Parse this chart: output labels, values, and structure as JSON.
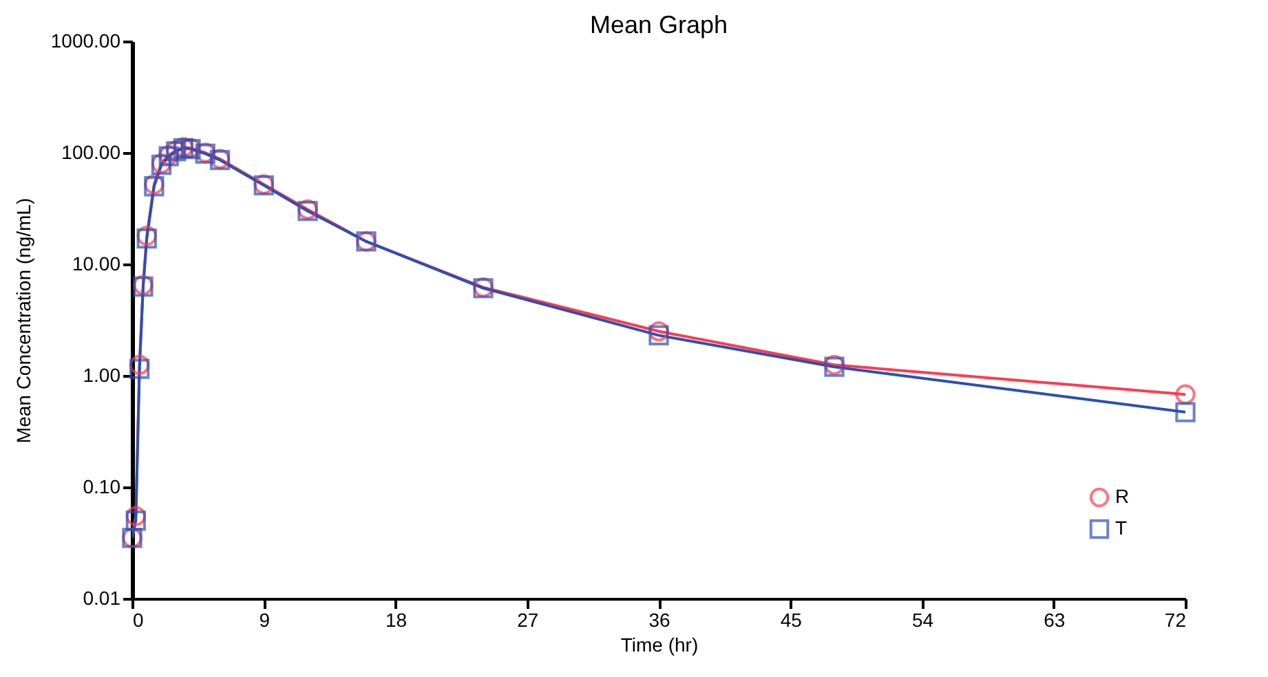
{
  "chart_data": {
    "type": "line",
    "title": "Mean Graph",
    "xlabel": "Time (hr)",
    "ylabel": "Mean Concentration (ng/mL)",
    "x": [
      0,
      0.25,
      0.5,
      0.75,
      1,
      1.5,
      2,
      2.5,
      3,
      3.5,
      4,
      5,
      6,
      9,
      12,
      16,
      24,
      36,
      48,
      72
    ],
    "series": [
      {
        "name": "R",
        "color": "#ff3b4e",
        "marker": "circle",
        "values": [
          0.035,
          0.055,
          1.25,
          6.5,
          18,
          52,
          80,
          95,
          105,
          112,
          110,
          100,
          88,
          52,
          31,
          16,
          6.2,
          2.5,
          1.25,
          0.68
        ]
      },
      {
        "name": "T",
        "color": "#2b4fb5",
        "marker": "square",
        "values": [
          0.035,
          0.05,
          1.15,
          6.3,
          17,
          50,
          78,
          93,
          103,
          110,
          108,
          98,
          86,
          51,
          30,
          16,
          6.1,
          2.3,
          1.2,
          0.47
        ]
      }
    ],
    "log": "y",
    "xlim": [
      0,
      72
    ],
    "xticks": [
      0,
      9,
      18,
      27,
      36,
      45,
      54,
      63,
      72
    ],
    "ylim": [
      0.01,
      1000
    ],
    "yticks": [
      {
        "value": 0.01,
        "label": "0.01"
      },
      {
        "value": 0.1,
        "label": "0.10"
      },
      {
        "value": 1,
        "label": "1.00"
      },
      {
        "value": 10,
        "label": "10.00"
      },
      {
        "value": 100,
        "label": "100.00"
      },
      {
        "value": 1000,
        "label": "1000.00"
      }
    ],
    "grid": false,
    "legend": "bottom right",
    "line_style": "solid"
  }
}
